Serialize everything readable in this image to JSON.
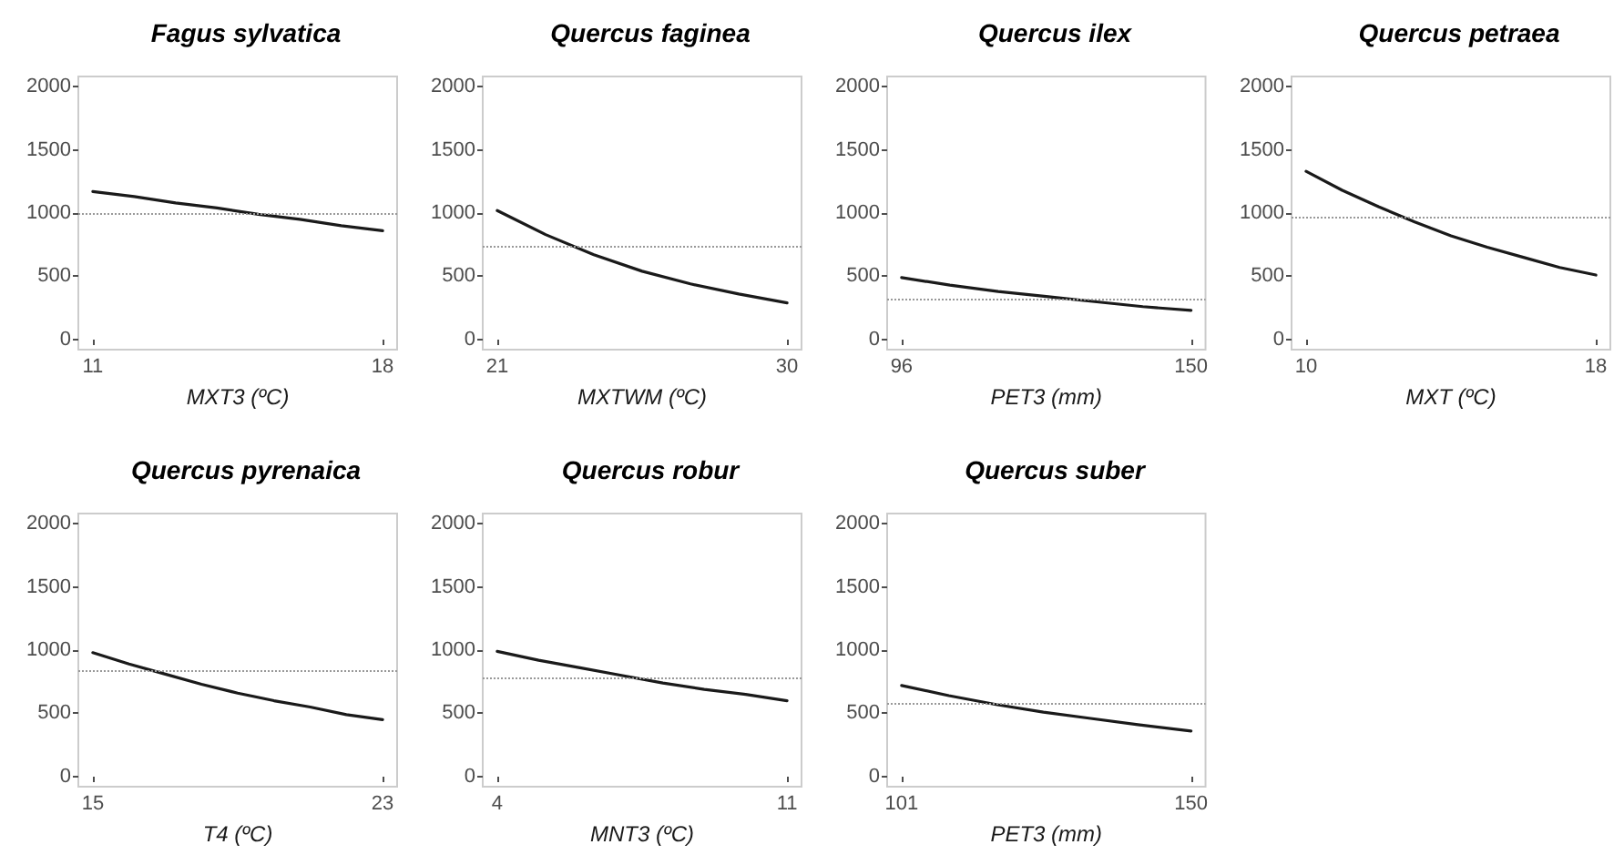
{
  "chart_data": [
    {
      "type": "line",
      "title": "Fagus sylvatica",
      "xlabel": "MXT3 (ºC)",
      "x": [
        11,
        12,
        13,
        14,
        15,
        16,
        17,
        18
      ],
      "values": [
        1170,
        1130,
        1080,
        1040,
        990,
        950,
        900,
        860
      ],
      "color": "#1a1a1a",
      "xlim": [
        10.65,
        18.35
      ],
      "xticks": [
        11,
        18
      ],
      "ylim": [
        -80,
        2080
      ],
      "yticks": [
        0,
        500,
        1000,
        1500,
        2000
      ],
      "ref_lines": [
        {
          "axis": "y",
          "value": 990,
          "color": "#999999",
          "line_style": "dotted"
        }
      ]
    },
    {
      "type": "line",
      "title": "Quercus faginea",
      "xlabel": "MXTWM (ºC)",
      "x": [
        21,
        22.5,
        24,
        25.5,
        27,
        28.5,
        30
      ],
      "values": [
        1020,
        830,
        670,
        540,
        440,
        360,
        290
      ],
      "color": "#1a1a1a",
      "xlim": [
        20.55,
        30.45
      ],
      "xticks": [
        21,
        30
      ],
      "ylim": [
        -80,
        2080
      ],
      "yticks": [
        0,
        500,
        1000,
        1500,
        2000
      ],
      "ref_lines": [
        {
          "axis": "y",
          "value": 740,
          "color": "#999999",
          "line_style": "dotted"
        }
      ]
    },
    {
      "type": "line",
      "title": "Quercus ilex",
      "xlabel": "PET3 (mm)",
      "x": [
        96,
        105,
        114,
        123,
        132,
        141,
        150
      ],
      "values": [
        490,
        430,
        380,
        340,
        300,
        260,
        230
      ],
      "color": "#1a1a1a",
      "xlim": [
        93.3,
        152.7
      ],
      "xticks": [
        96,
        150
      ],
      "ylim": [
        -80,
        2080
      ],
      "yticks": [
        0,
        500,
        1000,
        1500,
        2000
      ],
      "ref_lines": [
        {
          "axis": "y",
          "value": 320,
          "color": "#999999",
          "line_style": "dotted"
        }
      ]
    },
    {
      "type": "line",
      "title": "Quercus petraea",
      "xlabel": "MXT (ºC)",
      "x": [
        10,
        11,
        12,
        13,
        14,
        15,
        16,
        17,
        18
      ],
      "values": [
        1330,
        1180,
        1050,
        930,
        820,
        730,
        650,
        570,
        510
      ],
      "color": "#1a1a1a",
      "xlim": [
        9.6,
        18.4
      ],
      "xticks": [
        10,
        18
      ],
      "ylim": [
        -80,
        2080
      ],
      "yticks": [
        0,
        500,
        1000,
        1500,
        2000
      ],
      "ref_lines": [
        {
          "axis": "y",
          "value": 970,
          "color": "#999999",
          "line_style": "dotted"
        }
      ]
    },
    {
      "type": "line",
      "title": "Quercus pyrenaica",
      "xlabel": "T4 (ºC)",
      "x": [
        15,
        16,
        17,
        18,
        19,
        20,
        21,
        22,
        23
      ],
      "values": [
        980,
        890,
        810,
        730,
        660,
        600,
        550,
        490,
        450
      ],
      "color": "#1a1a1a",
      "xlim": [
        14.6,
        23.4
      ],
      "xticks": [
        15,
        23
      ],
      "ylim": [
        -80,
        2080
      ],
      "yticks": [
        0,
        500,
        1000,
        1500,
        2000
      ],
      "ref_lines": [
        {
          "axis": "y",
          "value": 845,
          "color": "#999999",
          "line_style": "dotted"
        }
      ]
    },
    {
      "type": "line",
      "title": "Quercus robur",
      "xlabel": "MNT3 (ºC)",
      "x": [
        4,
        5,
        6,
        7,
        8,
        9,
        10,
        11
      ],
      "values": [
        990,
        920,
        860,
        800,
        740,
        690,
        650,
        600
      ],
      "color": "#1a1a1a",
      "xlim": [
        3.65,
        11.35
      ],
      "xticks": [
        4,
        11
      ],
      "ylim": [
        -80,
        2080
      ],
      "yticks": [
        0,
        500,
        1000,
        1500,
        2000
      ],
      "ref_lines": [
        {
          "axis": "y",
          "value": 785,
          "color": "#999999",
          "line_style": "dotted"
        }
      ]
    },
    {
      "type": "line",
      "title": "Quercus suber",
      "xlabel": "PET3 (mm)",
      "x": [
        101,
        109,
        117,
        125,
        133,
        141,
        150
      ],
      "values": [
        720,
        640,
        570,
        510,
        460,
        410,
        360
      ],
      "color": "#1a1a1a",
      "xlim": [
        98.55,
        152.45
      ],
      "xticks": [
        101,
        150
      ],
      "ylim": [
        -80,
        2080
      ],
      "yticks": [
        0,
        500,
        1000,
        1500,
        2000
      ],
      "ref_lines": [
        {
          "axis": "y",
          "value": 585,
          "color": "#999999",
          "line_style": "dotted"
        }
      ]
    }
  ]
}
